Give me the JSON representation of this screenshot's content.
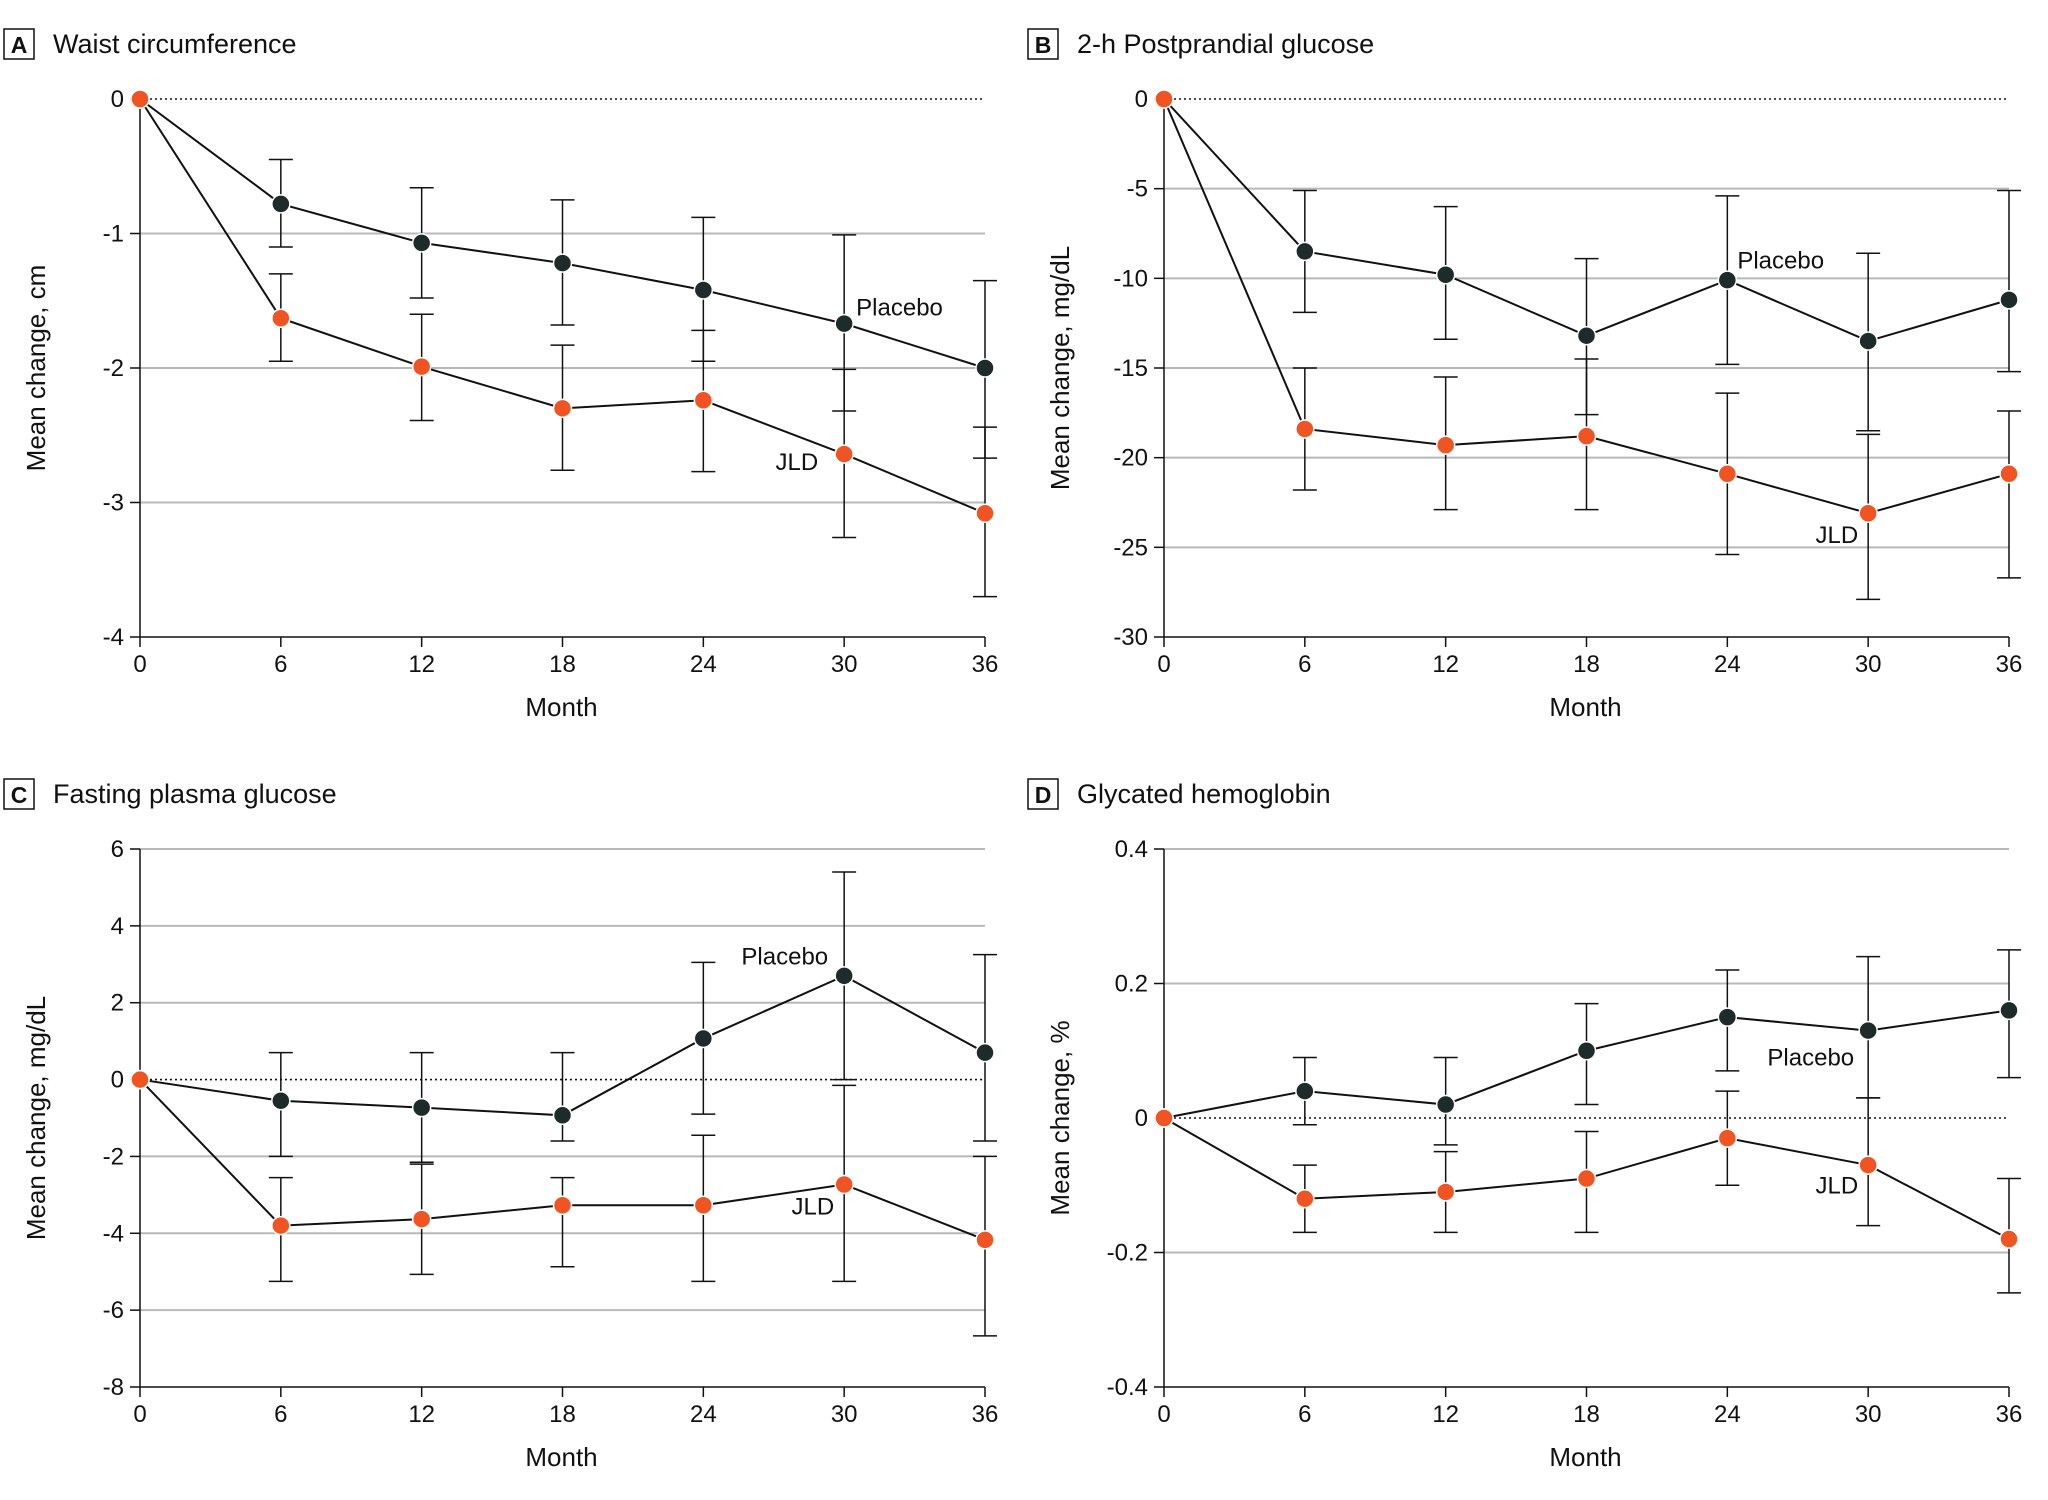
{
  "colors": {
    "placebo": "#1d2b2a",
    "jld": "#f05423",
    "grid": "#b8b8b8",
    "axis": "#111111"
  },
  "chart_data": [
    {
      "type": "line",
      "panel_letter": "A",
      "title": "Waist circumference",
      "xlabel": "Month",
      "ylabel": "Mean change, cm",
      "xlim": [
        0,
        36
      ],
      "ylim": [
        -4,
        0
      ],
      "x_ticks": [
        "0",
        "6",
        "12",
        "18",
        "24",
        "30",
        "36"
      ],
      "y_ticks": [
        "0",
        "-1",
        "-2",
        "-3",
        "-4"
      ],
      "y_tick_values": [
        0,
        -1,
        -2,
        -3,
        -4
      ],
      "grid_values": [
        -1,
        -2,
        -3
      ],
      "x": [
        0,
        6,
        12,
        18,
        24,
        30,
        36
      ],
      "series": [
        {
          "name": "Placebo",
          "label": "Placebo",
          "values": [
            0,
            -0.78,
            -1.07,
            -1.22,
            -1.42,
            -1.67,
            -2.0
          ],
          "lower": [
            0,
            -1.1,
            -1.48,
            -1.68,
            -1.95,
            -2.32,
            -2.67
          ],
          "upper": [
            0,
            -0.45,
            -0.66,
            -0.75,
            -0.88,
            -1.01,
            -1.35
          ]
        },
        {
          "name": "JLD",
          "label": "JLD",
          "values": [
            0,
            -1.63,
            -1.99,
            -2.3,
            -2.24,
            -2.64,
            -3.08
          ],
          "lower": [
            0,
            -1.95,
            -2.39,
            -2.76,
            -2.77,
            -3.26,
            -3.7
          ],
          "upper": [
            0,
            -1.3,
            -1.6,
            -1.83,
            -1.72,
            -2.01,
            -2.44
          ]
        }
      ]
    },
    {
      "type": "line",
      "panel_letter": "B",
      "title": "2-h Postprandial glucose",
      "xlabel": "Month",
      "ylabel": "Mean change, mg/dL",
      "xlim": [
        0,
        36
      ],
      "ylim": [
        -30,
        0
      ],
      "x_ticks": [
        "0",
        "6",
        "12",
        "18",
        "24",
        "30",
        "36"
      ],
      "y_ticks": [
        "0",
        "-5",
        "-10",
        "-15",
        "-20",
        "-25",
        "-30"
      ],
      "y_tick_values": [
        0,
        -5,
        -10,
        -15,
        -20,
        -25,
        -30
      ],
      "grid_values": [
        -5,
        -10,
        -15,
        -20,
        -25
      ],
      "x": [
        0,
        6,
        12,
        18,
        24,
        30,
        36
      ],
      "series": [
        {
          "name": "Placebo",
          "label": "Placebo",
          "values": [
            0,
            -8.5,
            -9.8,
            -13.2,
            -10.1,
            -13.5,
            -11.2
          ],
          "lower": [
            0,
            -11.9,
            -13.4,
            -17.6,
            -14.8,
            -18.5,
            -15.2
          ],
          "upper": [
            0,
            -5.1,
            -6.0,
            -8.9,
            -5.4,
            -8.6,
            -5.1
          ]
        },
        {
          "name": "JLD",
          "label": "JLD",
          "values": [
            0,
            -18.4,
            -19.3,
            -18.8,
            -20.9,
            -23.1,
            -20.9
          ],
          "lower": [
            0,
            -21.8,
            -22.9,
            -22.9,
            -25.4,
            -27.9,
            -26.7
          ],
          "upper": [
            0,
            -15.0,
            -15.5,
            -14.5,
            -16.4,
            -18.7,
            -17.4
          ]
        }
      ]
    },
    {
      "type": "line",
      "panel_letter": "C",
      "title": "Fasting plasma glucose",
      "xlabel": "Month",
      "ylabel": "Mean change, mg/dL",
      "xlim": [
        0,
        36
      ],
      "ylim": [
        -8,
        6
      ],
      "x_ticks": [
        "0",
        "6",
        "12",
        "18",
        "24",
        "30",
        "36"
      ],
      "y_ticks": [
        "6",
        "4",
        "2",
        "0",
        "-2",
        "-4",
        "-6",
        "-8"
      ],
      "y_tick_values": [
        6,
        4,
        2,
        0,
        -2,
        -4,
        -6,
        -8
      ],
      "grid_values": [
        6,
        4,
        2,
        -2,
        -4,
        -6
      ],
      "x": [
        0,
        6,
        12,
        18,
        24,
        30,
        36
      ],
      "series": [
        {
          "name": "Placebo",
          "label": "Placebo",
          "values": [
            0,
            -0.55,
            -0.73,
            -0.93,
            1.07,
            2.7,
            0.7
          ],
          "lower": [
            0,
            -2.0,
            -2.15,
            -1.6,
            -0.9,
            0.0,
            -1.6
          ],
          "upper": [
            0,
            0.7,
            0.7,
            0.7,
            3.05,
            5.4,
            3.25
          ]
        },
        {
          "name": "JLD",
          "label": "JLD",
          "values": [
            0,
            -3.8,
            -3.63,
            -3.27,
            -3.27,
            -2.73,
            -4.17
          ],
          "lower": [
            0,
            -5.25,
            -5.07,
            -4.87,
            -5.25,
            -5.25,
            -6.67
          ],
          "upper": [
            0,
            -2.55,
            -2.2,
            -2.55,
            -1.45,
            -0.15,
            -2.0
          ]
        }
      ]
    },
    {
      "type": "line",
      "panel_letter": "D",
      "title": "Glycated hemoglobin",
      "xlabel": "Month",
      "ylabel": "Mean change, %",
      "xlim": [
        0,
        36
      ],
      "ylim": [
        -0.4,
        0.4
      ],
      "x_ticks": [
        "0",
        "6",
        "12",
        "18",
        "24",
        "30",
        "36"
      ],
      "y_ticks": [
        "0.4",
        "0.2",
        "0",
        "-0.2",
        "-0.4"
      ],
      "y_tick_values": [
        0.4,
        0.2,
        0,
        -0.2,
        -0.4
      ],
      "grid_values": [
        0.4,
        0.2,
        -0.2
      ],
      "x": [
        0,
        6,
        12,
        18,
        24,
        30,
        36
      ],
      "series": [
        {
          "name": "Placebo",
          "label": "Placebo",
          "values": [
            0,
            0.04,
            0.02,
            0.1,
            0.15,
            0.13,
            0.16
          ],
          "lower": [
            0,
            -0.01,
            -0.04,
            0.02,
            0.07,
            0.03,
            0.06
          ],
          "upper": [
            0,
            0.09,
            0.09,
            0.17,
            0.22,
            0.24,
            0.25
          ]
        },
        {
          "name": "JLD",
          "label": "JLD",
          "values": [
            0,
            -0.12,
            -0.11,
            -0.09,
            -0.03,
            -0.07,
            -0.18
          ],
          "lower": [
            0,
            -0.17,
            -0.17,
            -0.17,
            -0.1,
            -0.16,
            -0.26
          ],
          "upper": [
            0,
            -0.07,
            -0.05,
            -0.02,
            0.04,
            0.03,
            -0.09
          ]
        }
      ]
    }
  ]
}
